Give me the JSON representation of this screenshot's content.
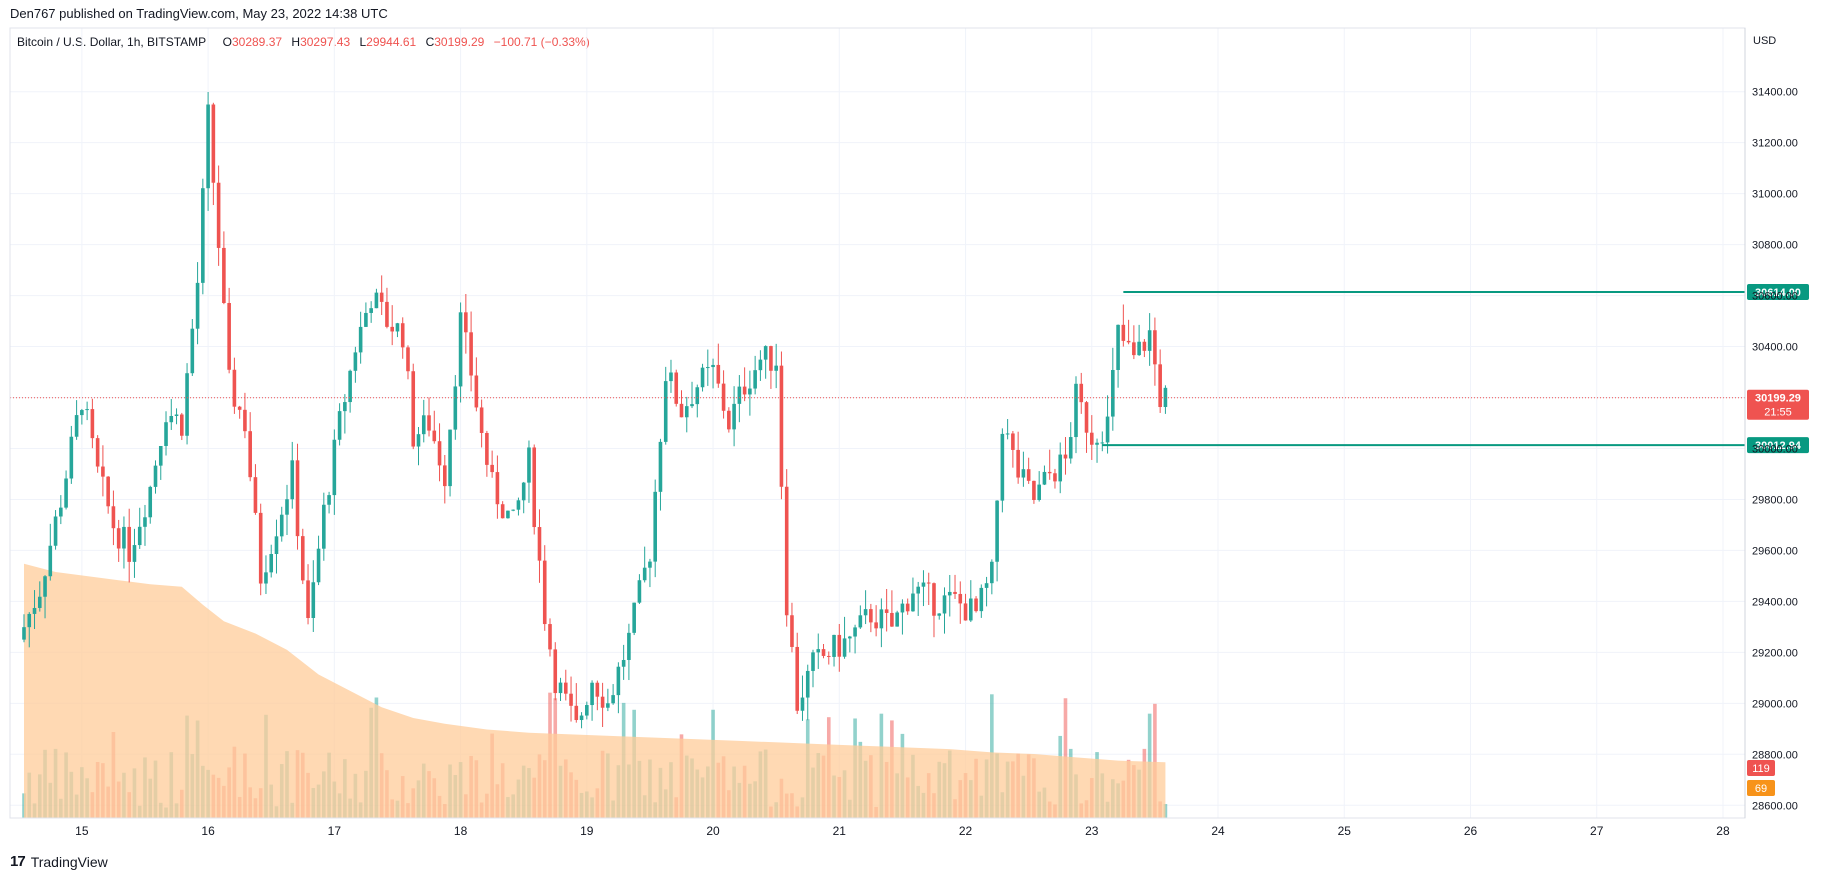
{
  "header": {
    "published": "Den767 published on TradingView.com, May 23, 2022 14:38 UTC"
  },
  "legend": {
    "symbol": "Bitcoin / U.S. Dollar, 1h, BITSTAMP",
    "o_label": "O",
    "o_value": "30289.37",
    "h_label": "H",
    "h_value": "30297.43",
    "l_label": "L",
    "l_value": "29944.61",
    "c_label": "C",
    "c_value": "30199.29",
    "change": "−100.71 (−0.33%)"
  },
  "footer": {
    "logo": "17",
    "brand": "TradingView"
  },
  "colors": {
    "up": "#26a69a",
    "down": "#ef5350",
    "level": "#089981",
    "volume_ma": "#ffcc99",
    "grid": "#f0f3fa",
    "axis_text": "#131722"
  },
  "chart_data": {
    "type": "candlestick",
    "currency_label": "USD",
    "ylim": [
      28550,
      31650
    ],
    "y_ticks": [
      "28600.00",
      "28800.00",
      "29000.00",
      "29200.00",
      "29400.00",
      "29600.00",
      "29800.00",
      "30000.00",
      "30200.00",
      "30400.00",
      "30600.00",
      "30800.00",
      "31000.00",
      "31200.00",
      "31400.00"
    ],
    "y_tick_values": [
      28600,
      28800,
      29000,
      29200,
      29400,
      29600,
      29800,
      30000,
      30200,
      30400,
      30600,
      30800,
      31000,
      31200,
      31400
    ],
    "x_ticks": [
      "15",
      "16",
      "17",
      "18",
      "19",
      "20",
      "21",
      "22",
      "23",
      "24",
      "25",
      "26",
      "27",
      "28"
    ],
    "x_tick_hours": [
      11,
      35,
      59,
      83,
      107,
      131,
      155,
      179,
      203,
      227,
      251,
      275,
      299,
      323
    ],
    "hours_total_span": [
      0,
      327
    ],
    "levels": [
      {
        "price": 30614.0,
        "label": "30614.00",
        "from_hour": 209
      },
      {
        "price": 30012.94,
        "label": "30012.94",
        "from_hour": 205
      }
    ],
    "last_price": {
      "value": 30199.29,
      "label": "30199.29",
      "countdown": "21:55"
    },
    "volume_labels": [
      {
        "label": "119",
        "color": "#ef5350"
      },
      {
        "label": "69",
        "color": "#f7931a"
      }
    ],
    "price_path": [
      [
        0,
        29250
      ],
      [
        4,
        29450
      ],
      [
        8,
        29800
      ],
      [
        12,
        30200
      ],
      [
        15,
        29900
      ],
      [
        18,
        29700
      ],
      [
        21,
        29600
      ],
      [
        25,
        29850
      ],
      [
        28,
        30150
      ],
      [
        31,
        30100
      ],
      [
        34,
        30650
      ],
      [
        36,
        31300
      ],
      [
        38,
        30800
      ],
      [
        40,
        30250
      ],
      [
        43,
        30100
      ],
      [
        46,
        29500
      ],
      [
        49,
        29700
      ],
      [
        52,
        29900
      ],
      [
        55,
        29300
      ],
      [
        58,
        29750
      ],
      [
        61,
        30100
      ],
      [
        64,
        30400
      ],
      [
        67,
        30600
      ],
      [
        70,
        30500
      ],
      [
        73,
        30450
      ],
      [
        75,
        30050
      ],
      [
        78,
        30100
      ],
      [
        81,
        29900
      ],
      [
        84,
        30500
      ],
      [
        86,
        30300
      ],
      [
        88,
        30050
      ],
      [
        90,
        29850
      ],
      [
        94,
        29700
      ],
      [
        97,
        29950
      ],
      [
        100,
        29350
      ],
      [
        102,
        29100
      ],
      [
        104,
        29000
      ],
      [
        106,
        28900
      ],
      [
        109,
        29100
      ],
      [
        112,
        29000
      ],
      [
        116,
        29250
      ],
      [
        120,
        29600
      ],
      [
        123,
        30300
      ],
      [
        126,
        30150
      ],
      [
        129,
        30250
      ],
      [
        132,
        30300
      ],
      [
        135,
        30100
      ],
      [
        138,
        30250
      ],
      [
        141,
        30350
      ],
      [
        144,
        30350
      ],
      [
        146,
        29400
      ],
      [
        148,
        29000
      ],
      [
        151,
        29150
      ],
      [
        154,
        29200
      ],
      [
        158,
        29250
      ],
      [
        162,
        29350
      ],
      [
        166,
        29300
      ],
      [
        170,
        29450
      ],
      [
        174,
        29400
      ],
      [
        178,
        29400
      ],
      [
        182,
        29350
      ],
      [
        185,
        29500
      ],
      [
        187,
        30100
      ],
      [
        190,
        29900
      ],
      [
        193,
        29800
      ],
      [
        196,
        29900
      ],
      [
        199,
        29950
      ],
      [
        201,
        30200
      ],
      [
        204,
        30050
      ],
      [
        207,
        30100
      ],
      [
        209,
        30450
      ],
      [
        212,
        30350
      ],
      [
        215,
        30450
      ],
      [
        217,
        30200
      ]
    ],
    "volume_ma_path": [
      [
        0,
        310
      ],
      [
        6,
        300
      ],
      [
        12,
        295
      ],
      [
        18,
        290
      ],
      [
        24,
        285
      ],
      [
        30,
        282
      ],
      [
        34,
        260
      ],
      [
        38,
        240
      ],
      [
        44,
        225
      ],
      [
        50,
        205
      ],
      [
        56,
        175
      ],
      [
        62,
        155
      ],
      [
        68,
        135
      ],
      [
        74,
        122
      ],
      [
        80,
        115
      ],
      [
        88,
        108
      ],
      [
        96,
        104
      ],
      [
        104,
        102
      ],
      [
        112,
        100
      ],
      [
        120,
        98
      ],
      [
        128,
        96
      ],
      [
        136,
        94
      ],
      [
        144,
        92
      ],
      [
        152,
        90
      ],
      [
        160,
        88
      ],
      [
        168,
        86
      ],
      [
        176,
        84
      ],
      [
        184,
        80
      ],
      [
        192,
        78
      ],
      [
        200,
        74
      ],
      [
        208,
        70
      ],
      [
        217,
        68
      ]
    ]
  }
}
